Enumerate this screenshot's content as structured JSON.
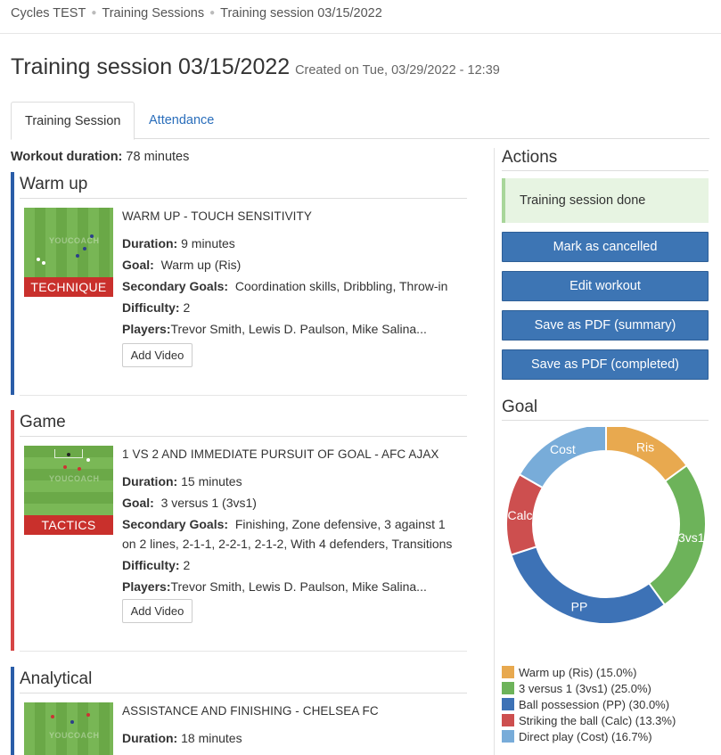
{
  "breadcrumb": [
    "Cycles TEST",
    "Training Sessions",
    "Training session 03/15/2022"
  ],
  "page": {
    "title": "Training session 03/15/2022",
    "created": "Created on Tue, 03/29/2022 - 12:39"
  },
  "tabs": {
    "session": "Training Session",
    "attendance": "Attendance"
  },
  "workout": {
    "label": "Workout duration:",
    "value": "78 minutes"
  },
  "labels": {
    "duration": "Duration:",
    "goal": "Goal:",
    "secondary": "Secondary Goals:",
    "difficulty": "Difficulty:",
    "players": "Players:",
    "add_video": "Add Video"
  },
  "exercises": [
    {
      "section": "Warm up",
      "section_color": "#2a5da8",
      "badge": "TECHNIQUE",
      "title": "WARM UP - TOUCH SENSITIVITY",
      "duration": "9 minutes",
      "goal": "Warm up (Ris)",
      "secondary": "Coordination skills, Dribbling, Throw-in",
      "difficulty": "2",
      "players": "Trevor Smith, Lewis D. Paulson, Mike Salina..."
    },
    {
      "section": "Game",
      "section_color": "#d64545",
      "badge": "TACTICS",
      "title": "1 VS 2 AND IMMEDIATE PURSUIT OF GOAL - AFC AJAX",
      "duration": "15 minutes",
      "goal": "3 versus 1 (3vs1)",
      "secondary_line1": "Finishing, Zone defensive, 3 against 1",
      "secondary_line2": "on 2 lines, 2-1-1, 2-2-1, 2-1-2, With 4 defenders, Transitions",
      "difficulty": "2",
      "players": "Trevor Smith, Lewis D. Paulson, Mike Salina..."
    },
    {
      "section": "Analytical",
      "section_color": "#2a5da8",
      "title": "ASSISTANCE AND FINISHING - CHELSEA FC",
      "duration": "18 minutes"
    }
  ],
  "thumb_watermark": "YOUCOACH",
  "actions": {
    "title": "Actions",
    "done": "Training session done",
    "buttons": [
      "Mark as cancelled",
      "Edit workout",
      "Save as PDF (summary)",
      "Save as PDF (completed)"
    ]
  },
  "chart_data": {
    "type": "pie",
    "title": "Goal",
    "slices": [
      {
        "label": "Ris",
        "legend": "Warm up (Ris) (15.0%)",
        "value": 15.0,
        "color": "#e8a94f"
      },
      {
        "label": "3vs1",
        "legend": "3 versus 1 (3vs1) (25.0%)",
        "value": 25.0,
        "color": "#6db35a"
      },
      {
        "label": "PP",
        "legend": "Ball possession (PP) (30.0%)",
        "value": 30.0,
        "color": "#3d72b6"
      },
      {
        "label": "Calc",
        "legend": "Striking the ball (Calc) (13.3%)",
        "value": 13.3,
        "color": "#cd4f4f"
      },
      {
        "label": "Cost",
        "legend": "Direct play (Cost) (16.7%)",
        "value": 16.7,
        "color": "#78acd9"
      }
    ]
  }
}
